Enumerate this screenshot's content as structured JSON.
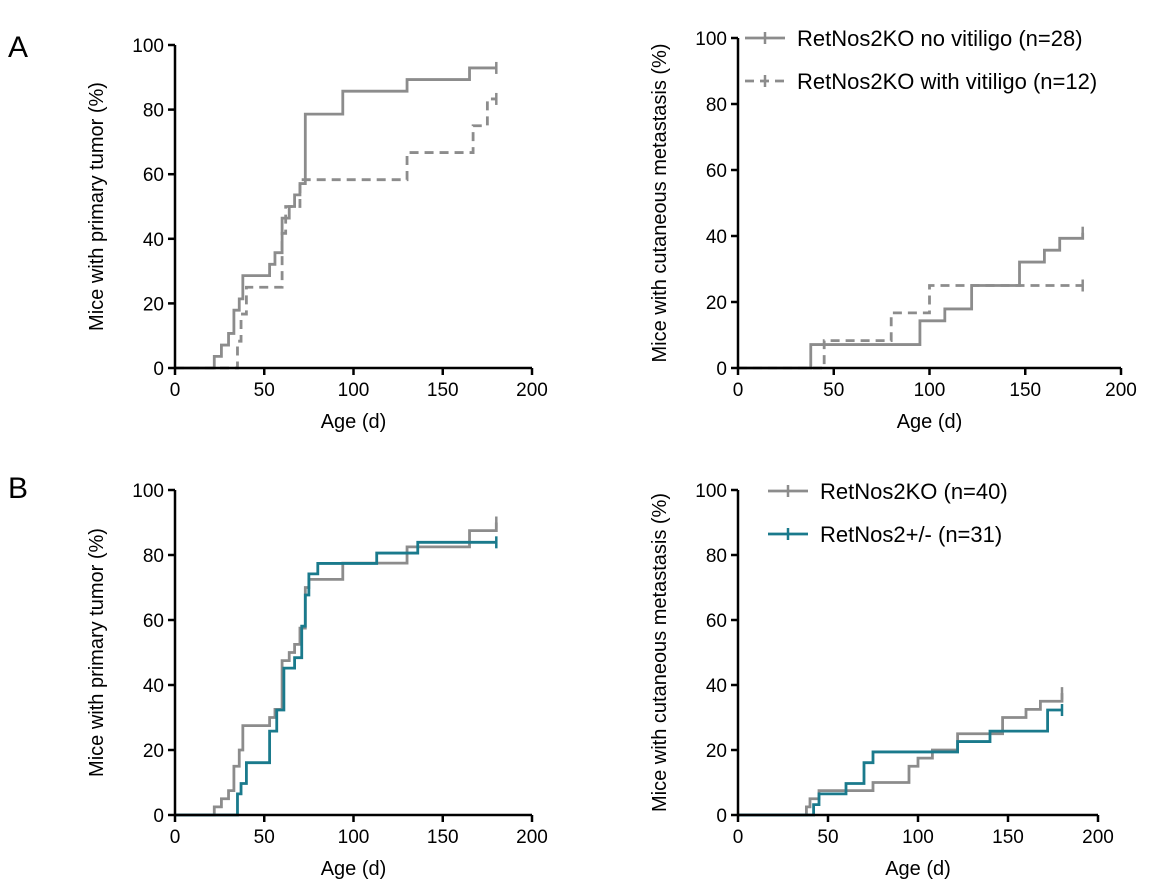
{
  "panels": [
    {
      "letter": "A"
    },
    {
      "letter": "B"
    }
  ],
  "chart_data": [
    {
      "type": "line",
      "step": true,
      "panel": "A",
      "xlabel": "Age (d)",
      "ylabel": "Mice with primary tumor (%)",
      "xlim": [
        0,
        200
      ],
      "ylim": [
        0,
        100
      ],
      "xticks": [
        0,
        50,
        100,
        150,
        200
      ],
      "yticks": [
        0,
        20,
        40,
        60,
        80,
        100
      ],
      "legend": null,
      "series": [
        {
          "name": "RetNos2KO no vitiligo (n=28)",
          "color": "#8c8c8c",
          "dash": "solid",
          "x": [
            0,
            22,
            26,
            30,
            33,
            36,
            38,
            53,
            56,
            60,
            64,
            67,
            70,
            73,
            94,
            130,
            165,
            180
          ],
          "y": [
            0,
            3.6,
            7.1,
            10.7,
            17.9,
            21.4,
            28.6,
            32.1,
            35.7,
            46.4,
            50,
            53.6,
            57.1,
            78.6,
            85.7,
            89.3,
            92.9,
            92.9
          ]
        },
        {
          "name": "RetNos2KO with vitiligo (n=12)",
          "color": "#8c8c8c",
          "dash": "dashed",
          "x": [
            0,
            35,
            37,
            40,
            60,
            62,
            66,
            70,
            73,
            130,
            167,
            175,
            180
          ],
          "y": [
            0,
            8.3,
            16.7,
            25,
            41.7,
            50,
            50,
            58.3,
            58.3,
            66.7,
            75,
            83.3,
            83.3
          ]
        }
      ]
    },
    {
      "type": "line",
      "step": true,
      "panel": "A",
      "xlabel": "Age (d)",
      "ylabel": "Mice with cutaneous metastasis (%)",
      "xlim": [
        0,
        200
      ],
      "ylim": [
        0,
        100
      ],
      "xticks": [
        0,
        50,
        100,
        150,
        200
      ],
      "yticks": [
        0,
        20,
        40,
        60,
        80,
        100
      ],
      "legend": "top-right",
      "series": [
        {
          "name": "RetNos2KO no vitiligo (n=28)",
          "color": "#8c8c8c",
          "dash": "solid",
          "x": [
            0,
            38,
            95,
            108,
            122,
            147,
            160,
            168,
            180
          ],
          "y": [
            0,
            7.1,
            14.3,
            17.9,
            25,
            32.1,
            35.7,
            39.3,
            41
          ]
        },
        {
          "name": "RetNos2KO with vitiligo (n=12)",
          "color": "#8c8c8c",
          "dash": "dashed",
          "x": [
            0,
            45,
            80,
            100,
            180
          ],
          "y": [
            0,
            8.3,
            16.7,
            25,
            25
          ]
        }
      ]
    },
    {
      "type": "line",
      "step": true,
      "panel": "B",
      "xlabel": "Age (d)",
      "ylabel": "Mice with primary tumor (%)",
      "xlim": [
        0,
        200
      ],
      "ylim": [
        0,
        100
      ],
      "xticks": [
        0,
        50,
        100,
        150,
        200
      ],
      "yticks": [
        0,
        20,
        40,
        60,
        80,
        100
      ],
      "legend": null,
      "series": [
        {
          "name": "RetNos2KO (n=40)",
          "color": "#8c8c8c",
          "dash": "solid",
          "x": [
            0,
            22,
            26,
            30,
            33,
            36,
            38,
            53,
            56,
            60,
            64,
            67,
            70,
            73,
            75,
            94,
            130,
            165,
            180
          ],
          "y": [
            0,
            2.5,
            5,
            7.5,
            15,
            20,
            27.5,
            30,
            32.5,
            47.5,
            50,
            52.5,
            57.5,
            70,
            72.5,
            77.5,
            82.5,
            87.5,
            90
          ]
        },
        {
          "name": "RetNos2+/- (n=31)",
          "color": "#1a7a8c",
          "dash": "solid",
          "x": [
            0,
            35,
            37,
            40,
            53,
            57,
            61,
            67,
            71,
            73,
            75,
            80,
            113,
            136,
            180
          ],
          "y": [
            0,
            6.5,
            9.7,
            16.1,
            25.8,
            32.3,
            45.2,
            48.4,
            58.1,
            67.7,
            74.2,
            77.4,
            80.6,
            83.9,
            83.9
          ]
        }
      ]
    },
    {
      "type": "line",
      "step": true,
      "panel": "B",
      "xlabel": "Age (d)",
      "ylabel": "Mice with cutaneous metastasis (%)",
      "xlim": [
        0,
        200
      ],
      "ylim": [
        0,
        100
      ],
      "xticks": [
        0,
        50,
        100,
        150,
        200
      ],
      "yticks": [
        0,
        20,
        40,
        60,
        80,
        100
      ],
      "legend": "top-left",
      "series": [
        {
          "name": "RetNos2KO (n=40)",
          "color": "#8c8c8c",
          "dash": "solid",
          "x": [
            0,
            38,
            40,
            45,
            75,
            95,
            100,
            108,
            122,
            147,
            160,
            168,
            180
          ],
          "y": [
            0,
            2.5,
            5,
            7.5,
            10,
            15,
            17.5,
            20,
            25,
            30,
            32.5,
            35,
            37.5
          ]
        },
        {
          "name": "RetNos2+/- (n=31)",
          "color": "#1a7a8c",
          "dash": "solid",
          "x": [
            0,
            42,
            45,
            60,
            70,
            75,
            113,
            122,
            140,
            172,
            180
          ],
          "y": [
            0,
            3.2,
            6.5,
            9.7,
            16.1,
            19.4,
            19.4,
            22.6,
            25.8,
            32.3,
            32.3
          ]
        }
      ]
    }
  ]
}
